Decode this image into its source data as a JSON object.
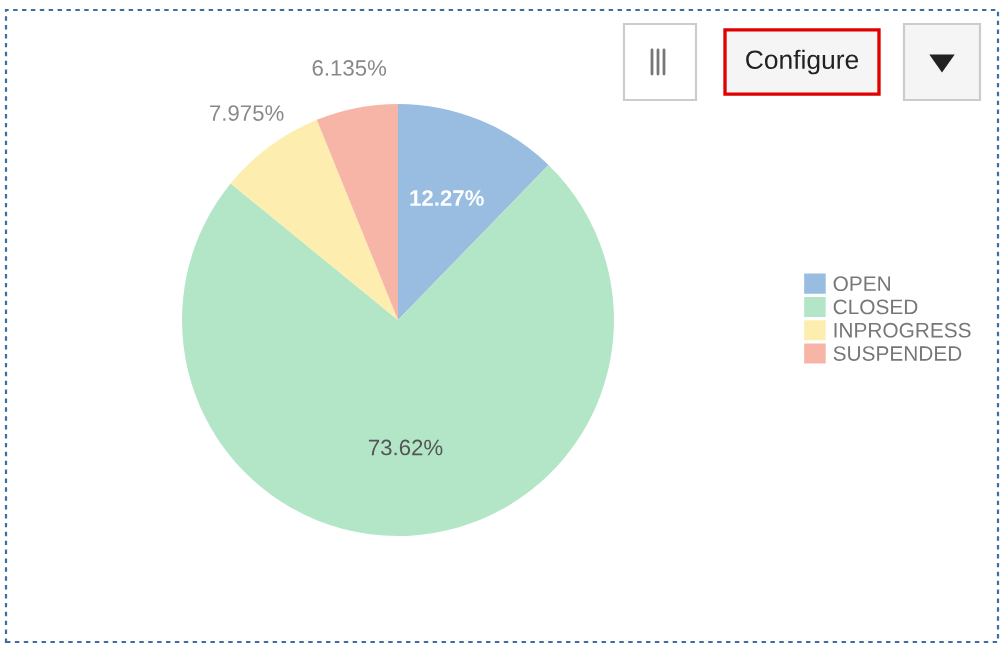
{
  "chart_data": {
    "type": "pie",
    "categories": [
      "OPEN",
      "CLOSED",
      "INPROGRESS",
      "SUSPENDED"
    ],
    "values": [
      12.27,
      73.62,
      7.975,
      6.135
    ],
    "colors": [
      "#99bde0",
      "#b3e6c7",
      "#fdeeb0",
      "#f7b5a8"
    ],
    "value_labels": [
      "12.27%",
      "73.62%",
      "7.975%",
      "6.135%"
    ],
    "legend": "right",
    "annotations": [
      "Configure"
    ]
  }
}
